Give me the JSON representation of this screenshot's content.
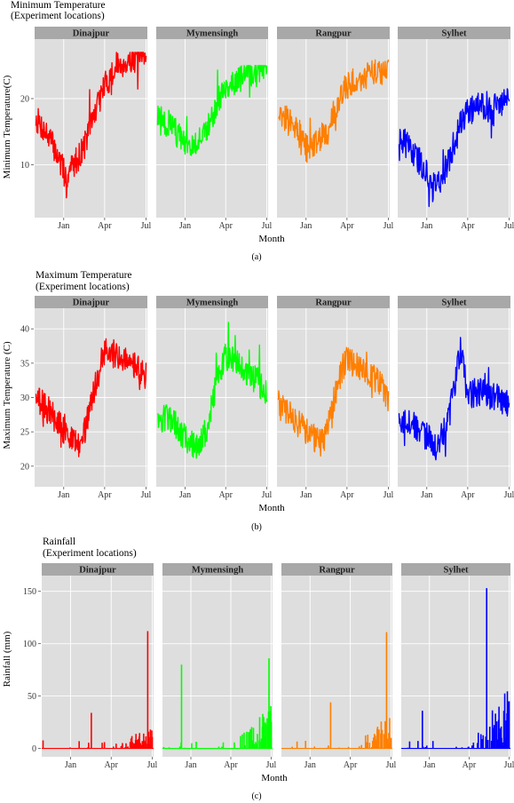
{
  "figure": {
    "panels": [
      {
        "caption": "(a)",
        "title_line1": "Minimum Temperature",
        "title_line2": "(Experiment locations)",
        "ylabel": "Minimum Temperature(C)",
        "xlabel": "Month"
      },
      {
        "caption": "(b)",
        "title_line1": "Maximum Temperature",
        "title_line2": "(Experiment locations)",
        "ylabel": "Maximum Temperature (C)",
        "xlabel": "Month"
      },
      {
        "caption": "(c)",
        "title_line1": "Rainfall",
        "title_line2": "(Experiment locations)",
        "ylabel": "Rainfall (mm)",
        "xlabel": "Month"
      }
    ]
  },
  "colors": {
    "Dinajpur": "#ff0000",
    "Mymensingh": "#00ff00",
    "Rangpur": "#ff7f00",
    "Sylhet": "#0000ff",
    "panel_bg": "#dedede",
    "strip_bg": "#a8a8a8",
    "grid": "#ffffff"
  },
  "chart_data": [
    {
      "type": "line",
      "title": "Minimum Temperature (Experiment locations)",
      "xlabel": "Month",
      "ylabel": "Minimum Temperature(C)",
      "facets": [
        "Dinajpur",
        "Mymensingh",
        "Rangpur",
        "Sylhet"
      ],
      "x_ticks": [
        "Jan",
        "Apr",
        "Jul"
      ],
      "y_ticks": [
        10,
        20
      ],
      "ylim": [
        2,
        29
      ],
      "series": [
        {
          "name": "Dinajpur",
          "keypoints": [
            [
              "Nov",
              17
            ],
            [
              "Dec",
              14
            ],
            [
              "Dec 20",
              11
            ],
            [
              "Jan 5",
              8
            ],
            [
              "Jan 20",
              10
            ],
            [
              "Feb",
              11
            ],
            [
              "Feb 15",
              13
            ],
            [
              "Mar",
              16
            ],
            [
              "Mar 15",
              19
            ],
            [
              "Apr",
              22
            ],
            [
              "May",
              25
            ],
            [
              "Jun",
              26
            ],
            [
              "Jul",
              26
            ]
          ],
          "min": 5,
          "max": 27
        },
        {
          "name": "Mymensingh",
          "keypoints": [
            [
              "Nov",
              17
            ],
            [
              "Dec",
              16
            ],
            [
              "Dec 20",
              14
            ],
            [
              "Jan 5",
              12
            ],
            [
              "Jan 20",
              13
            ],
            [
              "Feb",
              14
            ],
            [
              "Feb 15",
              15
            ],
            [
              "Mar",
              17
            ],
            [
              "Mar 15",
              20
            ],
            [
              "Apr",
              22
            ],
            [
              "May",
              23
            ],
            [
              "Jun",
              24
            ],
            [
              "Jul",
              25
            ]
          ],
          "min": 8,
          "max": 25
        },
        {
          "name": "Rangpur",
          "keypoints": [
            [
              "Nov",
              18
            ],
            [
              "Dec",
              16
            ],
            [
              "Dec 20",
              14
            ],
            [
              "Jan 5",
              12
            ],
            [
              "Jan 20",
              13
            ],
            [
              "Feb",
              14
            ],
            [
              "Feb 15",
              15
            ],
            [
              "Mar",
              17
            ],
            [
              "Mar 15",
              20
            ],
            [
              "Apr",
              22
            ],
            [
              "May",
              23
            ],
            [
              "Jun",
              24
            ],
            [
              "Jul",
              24
            ]
          ],
          "min": 7,
          "max": 26
        },
        {
          "name": "Sylhet",
          "keypoints": [
            [
              "Nov",
              14
            ],
            [
              "Dec",
              12
            ],
            [
              "Dec 20",
              10
            ],
            [
              "Jan 5",
              8
            ],
            [
              "Jan 20",
              7
            ],
            [
              "Feb",
              8
            ],
            [
              "Feb 15",
              10
            ],
            [
              "Mar",
              13
            ],
            [
              "Mar 15",
              16
            ],
            [
              "Apr",
              18
            ],
            [
              "May",
              19
            ],
            [
              "Jun",
              19
            ],
            [
              "Jul",
              20
            ]
          ],
          "min": 3,
          "max": 22
        }
      ]
    },
    {
      "type": "line",
      "title": "Maximum Temperature (Experiment locations)",
      "xlabel": "Month",
      "ylabel": "Maximum Temperature (C)",
      "facets": [
        "Dinajpur",
        "Mymensingh",
        "Rangpur",
        "Sylhet"
      ],
      "x_ticks": [
        "Jan",
        "Apr",
        "Jul"
      ],
      "y_ticks": [
        20,
        25,
        30,
        35,
        40
      ],
      "ylim": [
        17,
        43
      ],
      "series": [
        {
          "name": "Dinajpur",
          "keypoints": [
            [
              "Nov",
              30
            ],
            [
              "Dec",
              28
            ],
            [
              "Dec 20",
              26
            ],
            [
              "Jan 5",
              25
            ],
            [
              "Jan 20",
              24
            ],
            [
              "Feb",
              23
            ],
            [
              "Feb 15",
              25
            ],
            [
              "Mar",
              29
            ],
            [
              "Mar 15",
              33
            ],
            [
              "Apr",
              37
            ],
            [
              "May",
              36
            ],
            [
              "Jun",
              35
            ],
            [
              "Jul",
              33
            ]
          ],
          "min": 20,
          "max": 42
        },
        {
          "name": "Mymensingh",
          "keypoints": [
            [
              "Nov",
              27
            ],
            [
              "Dec",
              27
            ],
            [
              "Dec 20",
              25
            ],
            [
              "Jan 5",
              24
            ],
            [
              "Jan 20",
              23
            ],
            [
              "Feb",
              23
            ],
            [
              "Feb 15",
              25
            ],
            [
              "Mar",
              29
            ],
            [
              "Mar 15",
              33
            ],
            [
              "Apr",
              36
            ],
            [
              "May",
              35
            ],
            [
              "Jun",
              33
            ],
            [
              "Jul",
              31
            ]
          ],
          "min": 19,
          "max": 41
        },
        {
          "name": "Rangpur",
          "keypoints": [
            [
              "Nov",
              29
            ],
            [
              "Dec",
              27
            ],
            [
              "Dec 20",
              26
            ],
            [
              "Jan 5",
              25
            ],
            [
              "Jan 20",
              24
            ],
            [
              "Feb",
              23
            ],
            [
              "Feb 15",
              25
            ],
            [
              "Mar",
              29
            ],
            [
              "Mar 15",
              33
            ],
            [
              "Apr",
              36
            ],
            [
              "May",
              34
            ],
            [
              "Jun",
              33
            ],
            [
              "Jul",
              30
            ]
          ],
          "min": 18,
          "max": 41
        },
        {
          "name": "Sylhet",
          "keypoints": [
            [
              "Nov",
              27
            ],
            [
              "Dec",
              26
            ],
            [
              "Dec 20",
              25
            ],
            [
              "Jan 5",
              24
            ],
            [
              "Jan 20",
              23
            ],
            [
              "Feb",
              24
            ],
            [
              "Feb 15",
              26
            ],
            [
              "Mar",
              31
            ],
            [
              "Mar 15",
              37
            ],
            [
              "Apr",
              30
            ],
            [
              "May",
              31
            ],
            [
              "Jun",
              30
            ],
            [
              "Jul",
              29
            ]
          ],
          "min": 20,
          "max": 39
        }
      ]
    },
    {
      "type": "bar",
      "title": "Rainfall (Experiment locations)",
      "xlabel": "Month",
      "ylabel": "Rainfall (mm)",
      "facets": [
        "Dinajpur",
        "Mymensingh",
        "Rangpur",
        "Sylhet"
      ],
      "x_ticks": [
        "Jan",
        "Apr",
        "Jul"
      ],
      "y_ticks": [
        0,
        50,
        100,
        150
      ],
      "ylim": [
        -8,
        165
      ],
      "series": [
        {
          "name": "Dinajpur",
          "peaks": [
            [
              "Feb 15",
              34
            ],
            [
              "Jun 20",
              112
            ]
          ],
          "typical_max": 20
        },
        {
          "name": "Mymensingh",
          "peaks": [
            [
              "Dec 10",
              80
            ],
            [
              "Jun 25",
              86
            ]
          ],
          "typical_max": 40
        },
        {
          "name": "Rangpur",
          "peaks": [
            [
              "Feb 15",
              44
            ],
            [
              "Jun 20",
              111
            ]
          ],
          "typical_max": 35
        },
        {
          "name": "Sylhet",
          "peaks": [
            [
              "Dec 15",
              36
            ],
            [
              "May 10",
              153
            ]
          ],
          "typical_max": 60
        }
      ]
    }
  ]
}
